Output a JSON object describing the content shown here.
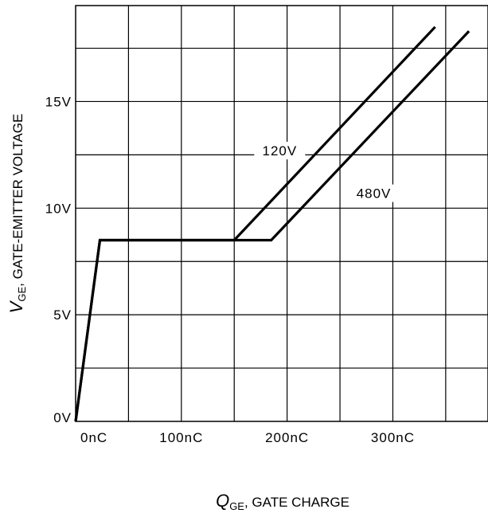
{
  "chart_data": {
    "type": "line",
    "x_axis": {
      "symbol": "Q",
      "subscript": "GE",
      "label": ", GATE CHARGE",
      "ticks": [
        "0nC",
        "100nC",
        "200nC",
        "300nC"
      ],
      "tick_values": [
        0,
        100,
        200,
        300
      ],
      "range": [
        0,
        390
      ]
    },
    "y_axis": {
      "symbol": "V",
      "subscript": "GE",
      "label": ", GATE-EMITTER VOLTAGE",
      "ticks": [
        "0V",
        "5V",
        "10V",
        "15V"
      ],
      "tick_values": [
        0,
        5,
        10,
        15
      ],
      "range": [
        0,
        19.5
      ]
    },
    "grid": true,
    "series": [
      {
        "name": "120V",
        "x": [
          0,
          23,
          150,
          340
        ],
        "y": [
          0,
          8.5,
          8.5,
          18.5
        ]
      },
      {
        "name": "480V",
        "x": [
          0,
          23,
          185,
          372
        ],
        "y": [
          0,
          8.5,
          8.5,
          18.3
        ]
      }
    ],
    "series_label_positions": {
      "120V": {
        "x": 193,
        "y": 12.7
      },
      "480V": {
        "x": 282,
        "y": 10.7
      }
    }
  }
}
